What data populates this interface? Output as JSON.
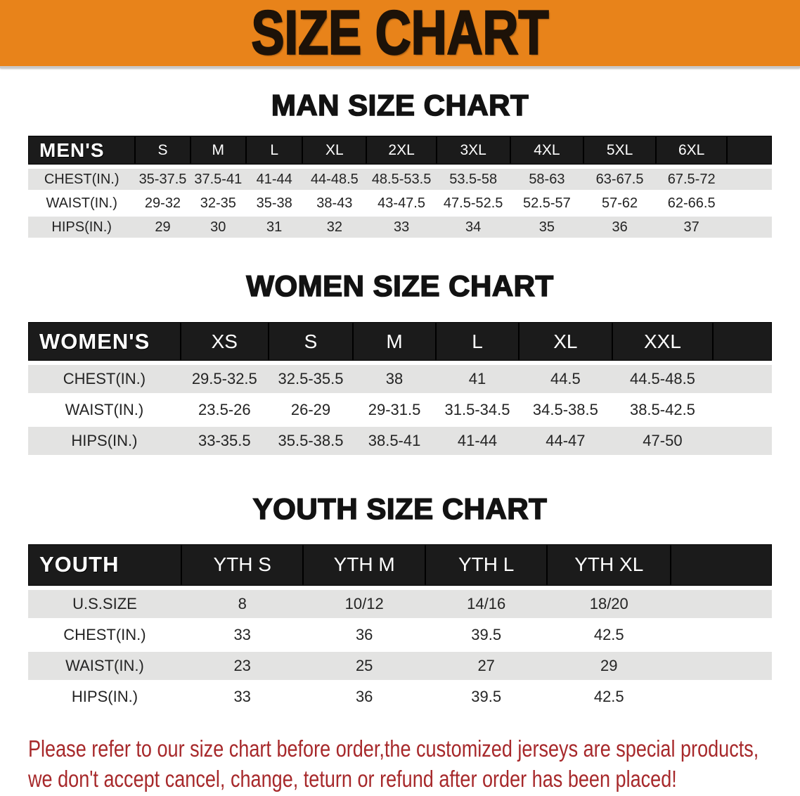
{
  "banner": {
    "title": "SIZE CHART",
    "bg_color": "#E8831A",
    "text_color": "#1D1208"
  },
  "sections": [
    {
      "id": "mens",
      "title": "MAN SIZE CHART",
      "corner_label": "MEN'S",
      "columns": [
        "S",
        "M",
        "L",
        "XL",
        "2XL",
        "3XL",
        "4XL",
        "5XL",
        "6XL"
      ],
      "rows": [
        {
          "label": "CHEST(IN.)",
          "values": [
            "35-37.5",
            "37.5-41",
            "41-44",
            "44-48.5",
            "48.5-53.5",
            "53.5-58",
            "58-63",
            "63-67.5",
            "67.5-72"
          ]
        },
        {
          "label": "WAIST(IN.)",
          "values": [
            "29-32",
            "32-35",
            "35-38",
            "38-43",
            "43-47.5",
            "47.5-52.5",
            "52.5-57",
            "57-62",
            "62-66.5"
          ]
        },
        {
          "label": "HIPS(IN.)",
          "values": [
            "29",
            "30",
            "31",
            "32",
            "33",
            "34",
            "35",
            "36",
            "37"
          ]
        }
      ]
    },
    {
      "id": "womens",
      "title": "WOMEN SIZE CHART",
      "corner_label": "WOMEN'S",
      "columns": [
        "XS",
        "S",
        "M",
        "L",
        "XL",
        "XXL"
      ],
      "rows": [
        {
          "label": "CHEST(IN.)",
          "values": [
            "29.5-32.5",
            "32.5-35.5",
            "38",
            "41",
            "44.5",
            "44.5-48.5"
          ]
        },
        {
          "label": "WAIST(IN.)",
          "values": [
            "23.5-26",
            "26-29",
            "29-31.5",
            "31.5-34.5",
            "34.5-38.5",
            "38.5-42.5"
          ]
        },
        {
          "label": "HIPS(IN.)",
          "values": [
            "33-35.5",
            "35.5-38.5",
            "38.5-41",
            "41-44",
            "44-47",
            "47-50"
          ]
        }
      ]
    },
    {
      "id": "youth",
      "title": "YOUTH SIZE CHART",
      "corner_label": "YOUTH",
      "columns": [
        "YTH S",
        "YTH M",
        "YTH L",
        "YTH XL"
      ],
      "rows": [
        {
          "label": "U.S.SIZE",
          "values": [
            "8",
            "10/12",
            "14/16",
            "18/20"
          ]
        },
        {
          "label": "CHEST(IN.)",
          "values": [
            "33",
            "36",
            "39.5",
            "42.5"
          ]
        },
        {
          "label": "WAIST(IN.)",
          "values": [
            "23",
            "25",
            "27",
            "29"
          ]
        },
        {
          "label": "HIPS(IN.)",
          "values": [
            "33",
            "36",
            "39.5",
            "42.5"
          ]
        }
      ]
    }
  ],
  "disclaimer": {
    "line1": "Please refer to our size chart before order,the customized jerseys are special products,",
    "line2": "we don't accept cancel, change, teturn or refund after order has been placed!",
    "color": "#A7292B"
  },
  "colors": {
    "header_bar": "#1B1B1B",
    "stripe": "#E3E3E2",
    "accent_orange": "#E8831A"
  }
}
